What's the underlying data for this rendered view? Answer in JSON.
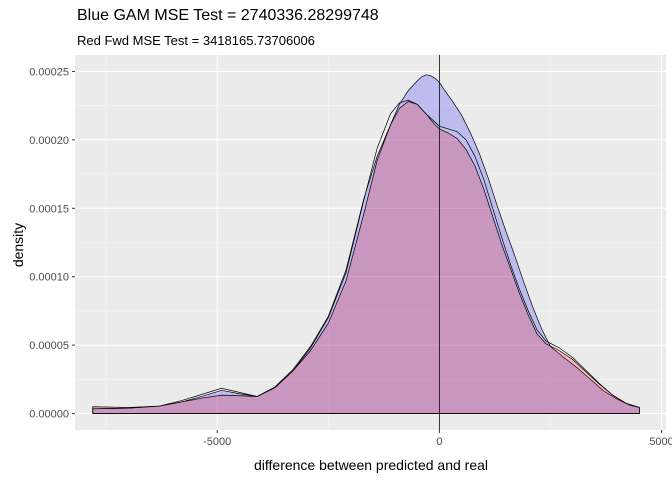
{
  "chart_data": {
    "type": "area",
    "title": "Blue GAM MSE Test =  2740336.28299748",
    "subtitle": "Red Fwd MSE Test =  3418165.73706006",
    "xlabel": "difference between predicted and real",
    "ylabel": "density",
    "xlim": [
      -8200,
      5100
    ],
    "ylim": [
      -1.2e-05,
      0.000262
    ],
    "x_ticks": [
      -5000,
      0,
      5000
    ],
    "x_tick_labels": [
      "-5000",
      "0",
      "5000"
    ],
    "y_ticks": [
      0,
      5e-05,
      0.0001,
      0.00015,
      0.0002,
      0.00025
    ],
    "y_tick_labels": [
      "0.00000",
      "0.00005",
      "0.00010",
      "0.00015",
      "0.00020",
      "0.00025"
    ],
    "grid": true,
    "vline_x": 0,
    "colors": {
      "panel": "#ebebeb",
      "grid_major": "#ffffff",
      "blue_fill": "#0000ff",
      "red_fill": "#ff0000",
      "outline": "#000000"
    },
    "series": [
      {
        "color": "blue",
        "x": [
          -7800,
          -7000,
          -6300,
          -5800,
          -5300,
          -4900,
          -4500,
          -4100,
          -3700,
          -3300,
          -2900,
          -2500,
          -2100,
          -1700,
          -1400,
          -1100,
          -900,
          -700,
          -500,
          -400,
          -300,
          -200,
          -100,
          0,
          100,
          300,
          500,
          700,
          900,
          1100,
          1300,
          1500,
          1700,
          1900,
          2100,
          2300,
          2500,
          2800,
          3100,
          3400,
          3700,
          4000,
          4300,
          4500
        ],
        "y": [
          3.5e-06,
          4e-06,
          5.5e-06,
          8.5e-06,
          1.3e-05,
          1.7e-05,
          1.45e-05,
          1.25e-05,
          1.95e-05,
          3.2e-05,
          4.9e-05,
          7.1e-05,
          0.000105,
          0.000157,
          0.000188,
          0.000211,
          0.000226,
          0.000236,
          0.000243,
          0.000246,
          0.0002475,
          0.000247,
          0.000245,
          0.000242,
          0.000237,
          0.000228,
          0.000218,
          0.000205,
          0.00019,
          0.000172,
          0.000152,
          0.000133,
          0.000115,
          9.6e-05,
          7.8e-05,
          6.2e-05,
          4.9e-05,
          4.1e-05,
          3.35e-05,
          2.5e-05,
          1.65e-05,
          1.05e-05,
          6e-06,
          4.5e-06
        ]
      },
      {
        "color": "red",
        "x": [
          -7800,
          -7000,
          -6300,
          -5800,
          -5300,
          -4900,
          -4500,
          -4100,
          -3700,
          -3300,
          -2900,
          -2500,
          -2100,
          -1700,
          -1400,
          -1100,
          -900,
          -700,
          -500,
          -300,
          -100,
          0,
          200,
          400,
          600,
          800,
          1000,
          1200,
          1400,
          1600,
          1800,
          2000,
          2200,
          2400,
          2700,
          3000,
          3300,
          3600,
          3900,
          4200,
          4500
        ],
        "y": [
          5e-06,
          4.5e-06,
          5.5e-06,
          8.5e-06,
          1.15e-05,
          1.35e-05,
          1.3e-05,
          1.25e-05,
          1.9e-05,
          3.1e-05,
          4.6e-05,
          6.6e-05,
          9.7e-05,
          0.000146,
          0.000185,
          0.000211,
          0.000223,
          0.000228,
          0.000226,
          0.000219,
          0.000211,
          0.000208,
          0.000205,
          0.000201,
          0.000193,
          0.000181,
          0.000164,
          0.000144,
          0.000124,
          0.000106,
          8.8e-05,
          7.2e-05,
          5.8e-05,
          5.1e-05,
          4.6e-05,
          3.95e-05,
          3.05e-05,
          2.15e-05,
          1.35e-05,
          7.5e-06,
          4.5e-06
        ]
      },
      {
        "color": "outline-only",
        "x": [
          -7800,
          -7000,
          -6300,
          -5800,
          -5300,
          -4900,
          -4500,
          -4100,
          -3700,
          -3300,
          -2900,
          -2500,
          -2100,
          -1700,
          -1400,
          -1100,
          -900,
          -700,
          -500,
          -300,
          -100,
          0,
          200,
          400,
          600,
          800,
          1000,
          1200,
          1400,
          1600,
          1800,
          2000,
          2200,
          2400,
          2700,
          3000,
          3300,
          3600,
          3900,
          4200,
          4500
        ],
        "y": [
          3.5e-06,
          4e-06,
          5.5e-06,
          9.5e-06,
          1.45e-05,
          1.85e-05,
          1.55e-05,
          1.25e-05,
          1.9e-05,
          3.1e-05,
          4.8e-05,
          7e-05,
          0.000103,
          0.000156,
          0.000194,
          0.000219,
          0.000227,
          0.000229,
          0.000226,
          0.000219,
          0.000213,
          0.00021,
          0.000208,
          0.000206,
          0.0002,
          0.000188,
          0.000171,
          0.00015,
          0.000129,
          0.000109,
          9.1e-05,
          7.5e-05,
          6.1e-05,
          5.3e-05,
          4.8e-05,
          4.1e-05,
          3.15e-05,
          2.2e-05,
          1.35e-05,
          7.5e-06,
          4.5e-06
        ]
      }
    ]
  }
}
